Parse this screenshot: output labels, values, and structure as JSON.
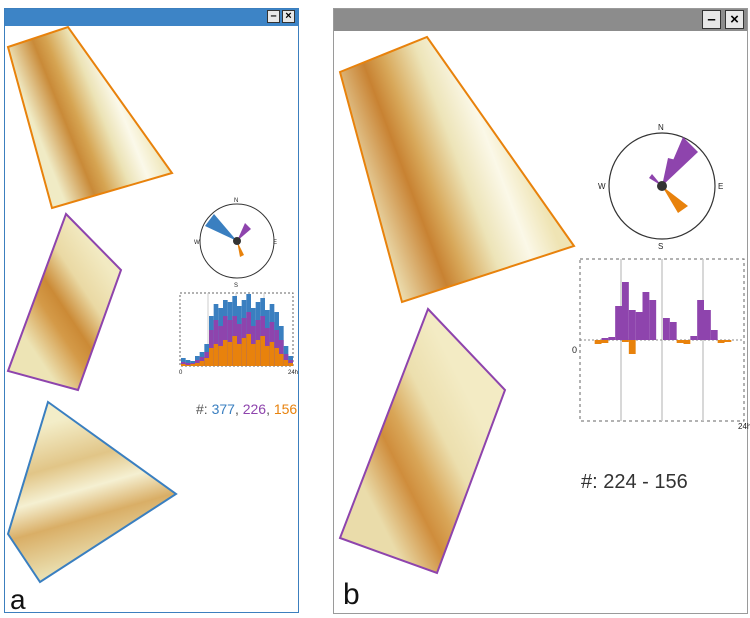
{
  "panel_a": {
    "label": "a",
    "counts_prefix": "#: ",
    "counts": [
      {
        "value": "377",
        "color": "#3a7fc0"
      },
      {
        "value": "226",
        "color": "#8e44ad"
      },
      {
        "value": "156",
        "color": "#e8820c"
      }
    ],
    "compass": {
      "n": "N",
      "s": "S",
      "e": "E",
      "w": "W"
    },
    "histogram": {
      "x_start": "0",
      "x_end": "24h"
    },
    "buttons": {
      "minimize": "–",
      "close": "×"
    }
  },
  "panel_b": {
    "label": "b",
    "counts_text": "#: 224 - 156",
    "compass": {
      "n": "N",
      "s": "S",
      "e": "E",
      "w": "W"
    },
    "histogram": {
      "zero": "0",
      "x_end": "24h"
    },
    "buttons": {
      "minimize": "–",
      "close": "×"
    }
  },
  "colors": {
    "blue": "#3a7fc0",
    "purple": "#8e44ad",
    "orange": "#e8820c",
    "field_light": "#f2eec8",
    "field_dark": "#c9822c"
  }
}
